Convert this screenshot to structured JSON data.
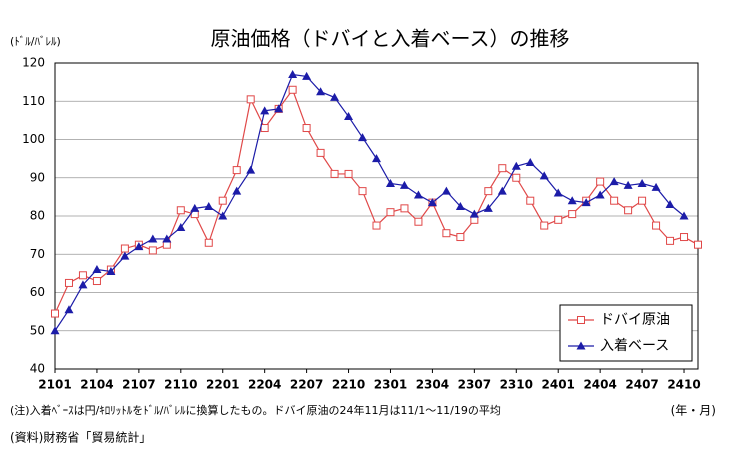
{
  "chart_data": {
    "type": "line",
    "title": "原油価格（ドバイと入着ベース）の推移",
    "y_label": "(ﾄﾞﾙ/ﾊﾞﾚﾙ)",
    "x_label": "(年・月)",
    "note": "(注)入着ﾍﾞｰｽは円/ｷﾛﾘｯﾄﾙをﾄﾞﾙ/ﾊﾞﾚﾙに換算したもの。ドバイ原油の24年11月は11/1～11/19の平均",
    "source": "(資料)財務省「貿易統計」",
    "categories": [
      "2101",
      null,
      null,
      "2104",
      null,
      null,
      "2107",
      null,
      null,
      "2110",
      null,
      null,
      "2201",
      null,
      null,
      "2204",
      null,
      null,
      "2207",
      null,
      null,
      "2210",
      null,
      null,
      "2301",
      null,
      null,
      "2304",
      null,
      null,
      "2307",
      null,
      null,
      "2310",
      null,
      null,
      "2401",
      null,
      null,
      "2404",
      null,
      null,
      "2407",
      null,
      null,
      "2410",
      null
    ],
    "series": [
      {
        "name": "ドバイ原油",
        "color": "#e04848",
        "marker": "square",
        "values": [
          54.5,
          62.5,
          64.5,
          63,
          66,
          71.5,
          72.5,
          71,
          72.5,
          81.5,
          80.5,
          73,
          84,
          92,
          110.5,
          103,
          108,
          113,
          103,
          96.5,
          91,
          91,
          86.5,
          77.5,
          81,
          82,
          78.5,
          83.5,
          75.5,
          74.5,
          79,
          86.5,
          92.5,
          90,
          84,
          77.5,
          79,
          80.5,
          84,
          89,
          84,
          81.5,
          84,
          77.5,
          73.5,
          74.5,
          72.5
        ]
      },
      {
        "name": "入着ベース",
        "color": "#1c1ca8",
        "marker": "triangle",
        "values": [
          50,
          55.5,
          62,
          66,
          65.5,
          69.5,
          72,
          74,
          74,
          77,
          82,
          82.5,
          80,
          86.5,
          92,
          107.5,
          108,
          117,
          116.5,
          112.5,
          111,
          106,
          100.5,
          95,
          88.5,
          88,
          85.5,
          83.5,
          86.5,
          82.5,
          80.5,
          82,
          86.5,
          93,
          94,
          90.5,
          86,
          84,
          83.5,
          85.5,
          89,
          88,
          88.5,
          87.5,
          83,
          80,
          null
        ]
      }
    ],
    "ylim": [
      40,
      120
    ],
    "yticks": [
      40,
      50,
      60,
      70,
      80,
      90,
      100,
      110,
      120
    ],
    "grid": true,
    "legend": "lower right"
  }
}
